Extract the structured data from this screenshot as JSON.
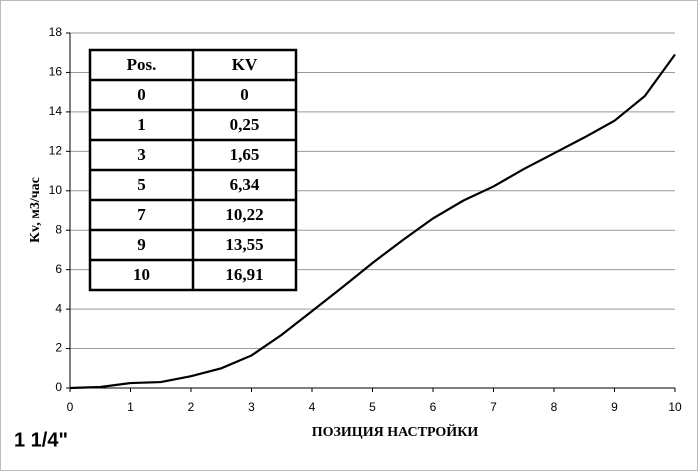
{
  "chart_data": {
    "type": "line",
    "xlabel": "ПОЗИЦИЯ НАСТРОЙКИ",
    "ylabel": "Kv, м3/час",
    "annotation": "1 1/4\"",
    "x": [
      0,
      0.5,
      1,
      1.5,
      2,
      2.5,
      3,
      3.5,
      4,
      4.5,
      5,
      5.5,
      6,
      6.5,
      7,
      7.5,
      8,
      8.5,
      9,
      9.5,
      10
    ],
    "values": [
      0,
      0.05,
      0.25,
      0.3,
      0.6,
      1.0,
      1.65,
      2.7,
      3.9,
      5.1,
      6.34,
      7.5,
      8.6,
      9.5,
      10.22,
      11.1,
      11.9,
      12.7,
      13.55,
      14.8,
      16.91
    ],
    "color": "#000000",
    "xlim": [
      0,
      10
    ],
    "ylim": [
      0,
      18
    ],
    "xticks": [
      0,
      1,
      2,
      3,
      4,
      5,
      6,
      7,
      8,
      9,
      10
    ],
    "yticks": [
      0,
      2,
      4,
      6,
      8,
      10,
      12,
      14,
      16,
      18
    ],
    "grid": true,
    "table": {
      "header": [
        "Pos.",
        "KV"
      ],
      "rows": [
        [
          "0",
          "0"
        ],
        [
          "1",
          "0,25"
        ],
        [
          "3",
          "1,65"
        ],
        [
          "5",
          "6,34"
        ],
        [
          "7",
          "10,22"
        ],
        [
          "9",
          "13,55"
        ],
        [
          "10",
          "16,91"
        ]
      ]
    }
  }
}
